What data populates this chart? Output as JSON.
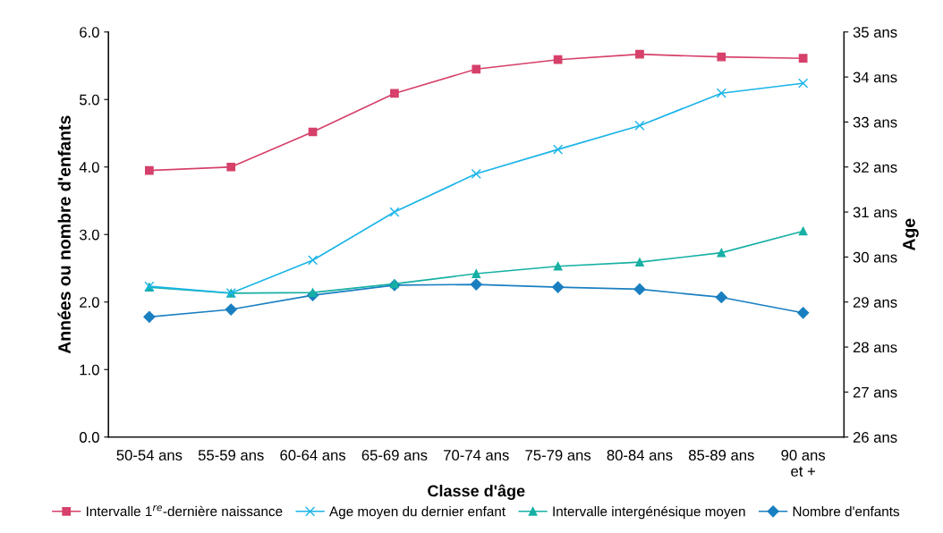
{
  "chart_data": {
    "type": "line",
    "xlabel": "Classe d'âge",
    "ylabel": "Années ou nombre d'enfants",
    "y2label": "Age",
    "categories": [
      "50-54 ans",
      "55-59 ans",
      "60-64 ans",
      "65-69 ans",
      "70-74 ans",
      "75-79 ans",
      "80-84 ans",
      "85-89 ans",
      "90 ans\net +"
    ],
    "series": [
      {
        "name": "Intervalle 1$^{re}$-dernière naissance",
        "color": "#d6406a",
        "marker": "square",
        "values": [
          3.95,
          4.0,
          4.52,
          5.09,
          5.45,
          5.59,
          5.67,
          5.63,
          5.61
        ]
      },
      {
        "name": "Age moyen du dernier enfant",
        "color": "#1ab4e8",
        "marker": "cross",
        "axis": "y2",
        "values": [
          29.35,
          29.2,
          29.93,
          31.0,
          31.85,
          32.39,
          32.92,
          33.64,
          33.86
        ]
      },
      {
        "name": "Intervalle intergénésique moyen",
        "color": "#16b0a4",
        "marker": "triangle",
        "values": [
          2.22,
          2.13,
          2.14,
          2.27,
          2.42,
          2.53,
          2.59,
          2.73,
          3.05
        ]
      },
      {
        "name": "Nombre d'enfants",
        "color": "#1a7fc1",
        "marker": "diamond",
        "values": [
          1.78,
          1.89,
          2.1,
          2.25,
          2.26,
          2.22,
          2.19,
          2.07,
          1.84
        ]
      }
    ],
    "ylim": [
      0,
      6
    ],
    "yticks": [
      {
        "value": 0,
        "label": "0.0"
      },
      {
        "value": 1,
        "label": "1.0"
      },
      {
        "value": 2,
        "label": "2.0"
      },
      {
        "value": 3,
        "label": "3.0"
      },
      {
        "value": 4,
        "label": "4.0"
      },
      {
        "value": 5,
        "label": "5.0"
      },
      {
        "value": 6,
        "label": "6.0"
      }
    ],
    "y2lim": [
      26,
      35
    ],
    "y2ticks": [
      {
        "value": 26,
        "label": "26 ans"
      },
      {
        "value": 27,
        "label": "27 ans"
      },
      {
        "value": 28,
        "label": "28 ans"
      },
      {
        "value": 29,
        "label": "29 ans"
      },
      {
        "value": 30,
        "label": "30 ans"
      },
      {
        "value": 31,
        "label": "31 ans"
      },
      {
        "value": 32,
        "label": "32 ans"
      },
      {
        "value": 33,
        "label": "33 ans"
      },
      {
        "value": 34,
        "label": "34 ans"
      },
      {
        "value": 35,
        "label": "35 ans"
      }
    ],
    "grid": false,
    "legend": "bottom",
    "line_style": "solid"
  }
}
